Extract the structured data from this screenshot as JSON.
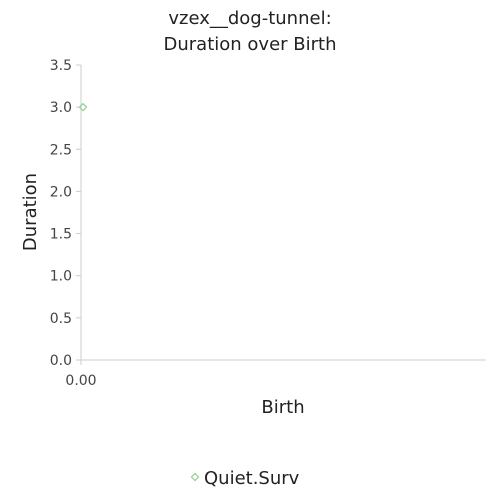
{
  "chart_data": {
    "type": "scatter",
    "title_lines": [
      "vzex__dog-tunnel:",
      "Duration over Birth"
    ],
    "xlabel": "Birth",
    "ylabel": "Duration",
    "x_ticks": [
      "0.00"
    ],
    "y_ticks": [
      "0.0",
      "0.5",
      "1.0",
      "1.5",
      "2.0",
      "2.5",
      "3.0",
      "3.5"
    ],
    "ylim": [
      0,
      3.5
    ],
    "grid": false,
    "legend_position": "bottom",
    "series": [
      {
        "name": "Quiet.Surv",
        "color": "#8fd18f",
        "marker": "diamond",
        "points": [
          {
            "x": 0.0,
            "y": 3.0
          }
        ]
      }
    ]
  }
}
